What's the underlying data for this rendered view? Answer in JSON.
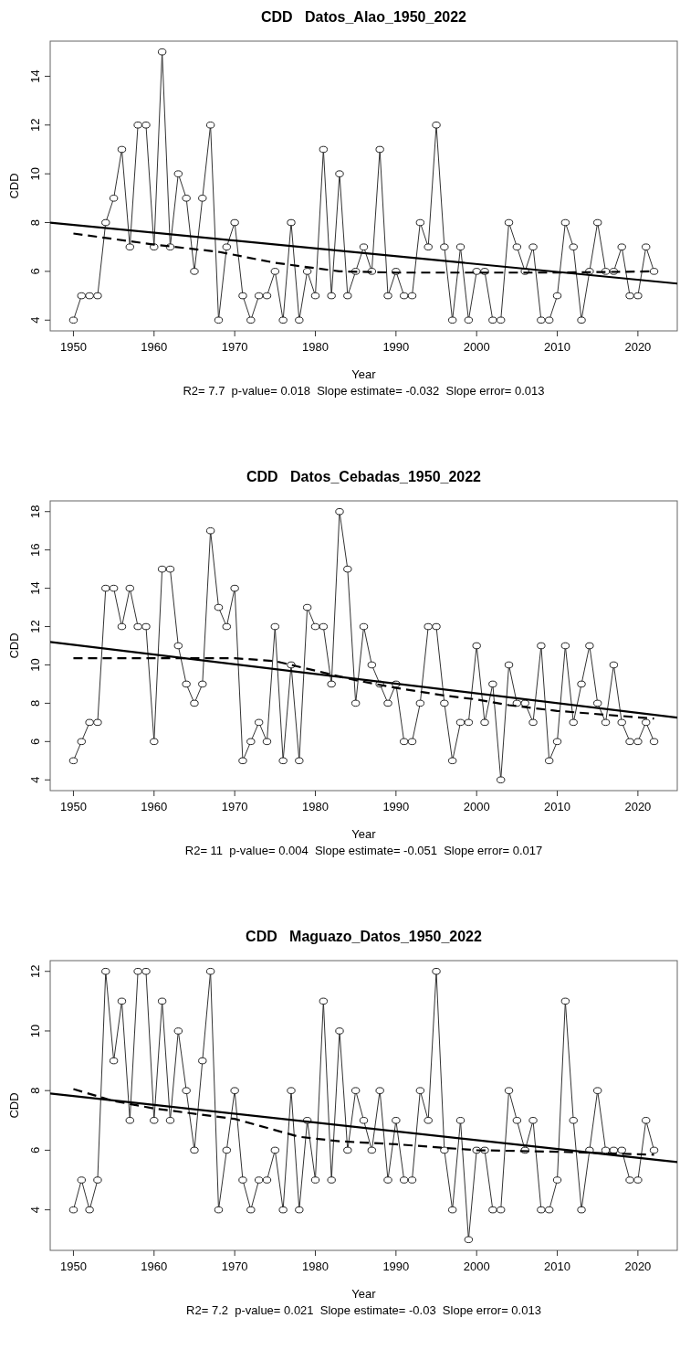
{
  "chart_data": [
    {
      "type": "line",
      "title": "CDD   Datos_Alao_1950_2022",
      "xlabel": "Year",
      "ylabel": "CDD",
      "annotations": [
        "R2= 7.7  p-value= 0.018  Slope estimate= -0.032  Slope error= 0.013"
      ],
      "x": [
        1950,
        1951,
        1952,
        1953,
        1954,
        1955,
        1956,
        1957,
        1958,
        1959,
        1960,
        1961,
        1962,
        1963,
        1964,
        1965,
        1966,
        1967,
        1968,
        1969,
        1970,
        1971,
        1972,
        1973,
        1974,
        1975,
        1976,
        1977,
        1978,
        1979,
        1980,
        1981,
        1982,
        1983,
        1984,
        1985,
        1986,
        1987,
        1988,
        1989,
        1990,
        1991,
        1992,
        1993,
        1994,
        1995,
        1996,
        1997,
        1998,
        1999,
        2000,
        2001,
        2002,
        2003,
        2004,
        2005,
        2006,
        2007,
        2008,
        2009,
        2010,
        2011,
        2012,
        2013,
        2014,
        2015,
        2016,
        2017,
        2018,
        2019,
        2020,
        2021,
        2022
      ],
      "series": [
        {
          "color": "#333333",
          "marker": "circle",
          "line_style": "solid",
          "values": [
            4,
            5,
            5,
            5,
            8,
            9,
            11,
            7,
            12,
            12,
            7,
            15,
            7,
            10,
            9,
            6,
            9,
            12,
            4,
            7,
            8,
            5,
            4,
            5,
            5,
            6,
            4,
            8,
            4,
            6,
            5,
            11,
            5,
            10,
            5,
            6,
            7,
            6,
            11,
            5,
            6,
            5,
            5,
            8,
            7,
            12,
            7,
            4,
            7,
            4,
            6,
            6,
            4,
            4,
            8,
            7,
            6,
            7,
            4,
            4,
            5,
            8,
            7,
            4,
            6,
            8,
            6,
            6,
            7,
            5,
            5,
            7,
            6
          ]
        },
        {
          "type": "line",
          "color": "#000000",
          "marker": "none",
          "line_style": "solid",
          "x": [
            1947.12,
            2024.88
          ],
          "values": [
            8.0,
            5.5
          ]
        },
        {
          "type": "line",
          "color": "#000000",
          "marker": "none",
          "line_style": "dashed",
          "x": [
            1950,
            1960,
            1968,
            1975,
            1983,
            1990,
            2000,
            2010,
            2022
          ],
          "values": [
            7.55,
            7.1,
            6.8,
            6.35,
            6.0,
            5.95,
            5.95,
            5.95,
            6.0
          ]
        }
      ],
      "xlim": [
        1947.12,
        2024.88
      ],
      "xticks": [
        1950,
        1960,
        1970,
        1980,
        1990,
        2000,
        2010,
        2020
      ],
      "ylim": [
        3.56,
        15.44
      ],
      "yticks": [
        4,
        6,
        8,
        10,
        12,
        14
      ]
    },
    {
      "type": "line",
      "title": "CDD   Datos_Cebadas_1950_2022",
      "xlabel": "Year",
      "ylabel": "CDD",
      "annotations": [
        "R2= 11  p-value= 0.004  Slope estimate= -0.051  Slope error= 0.017"
      ],
      "x": [
        1950,
        1951,
        1952,
        1953,
        1954,
        1955,
        1956,
        1957,
        1958,
        1959,
        1960,
        1961,
        1962,
        1963,
        1964,
        1965,
        1966,
        1967,
        1968,
        1969,
        1970,
        1971,
        1972,
        1973,
        1974,
        1975,
        1976,
        1977,
        1978,
        1979,
        1980,
        1981,
        1982,
        1983,
        1984,
        1985,
        1986,
        1987,
        1988,
        1989,
        1990,
        1991,
        1992,
        1993,
        1994,
        1995,
        1996,
        1997,
        1998,
        1999,
        2000,
        2001,
        2002,
        2003,
        2004,
        2005,
        2006,
        2007,
        2008,
        2009,
        2010,
        2011,
        2012,
        2013,
        2014,
        2015,
        2016,
        2017,
        2018,
        2019,
        2020,
        2021,
        2022
      ],
      "series": [
        {
          "color": "#333333",
          "marker": "circle",
          "line_style": "solid",
          "values": [
            5,
            6,
            7,
            7,
            14,
            14,
            12,
            14,
            12,
            12,
            6,
            15,
            15,
            11,
            9,
            8,
            9,
            17,
            13,
            12,
            14,
            5,
            6,
            7,
            6,
            12,
            5,
            10,
            5,
            13,
            12,
            12,
            9,
            18,
            15,
            8,
            12,
            10,
            9,
            8,
            9,
            6,
            6,
            8,
            12,
            12,
            8,
            5,
            7,
            7,
            11,
            7,
            9,
            4,
            10,
            8,
            8,
            7,
            11,
            5,
            6,
            11,
            7,
            9,
            11,
            8,
            7,
            10,
            7,
            6,
            6,
            7,
            6
          ]
        },
        {
          "type": "line",
          "color": "#000000",
          "marker": "none",
          "line_style": "solid",
          "x": [
            1947.12,
            2024.88
          ],
          "values": [
            11.2,
            7.25
          ]
        },
        {
          "type": "line",
          "color": "#000000",
          "marker": "none",
          "line_style": "dashed",
          "x": [
            1950,
            1960,
            1970,
            1975,
            1980,
            1985,
            1990,
            1996,
            2000,
            2004,
            2010,
            2016,
            2022
          ],
          "values": [
            10.35,
            10.35,
            10.35,
            10.2,
            9.7,
            9.2,
            8.8,
            8.4,
            8.2,
            7.9,
            7.6,
            7.4,
            7.2
          ]
        }
      ],
      "xlim": [
        1947.12,
        2024.88
      ],
      "xticks": [
        1950,
        1960,
        1970,
        1980,
        1990,
        2000,
        2010,
        2020
      ],
      "ylim": [
        3.44,
        18.56
      ],
      "yticks": [
        4,
        6,
        8,
        10,
        12,
        14,
        16,
        18
      ]
    },
    {
      "type": "line",
      "title": "CDD   Maguazo_Datos_1950_2022",
      "xlabel": "Year",
      "ylabel": "CDD",
      "annotations": [
        "R2= 7.2  p-value= 0.021  Slope estimate= -0.03  Slope error= 0.013"
      ],
      "x": [
        1950,
        1951,
        1952,
        1953,
        1954,
        1955,
        1956,
        1957,
        1958,
        1959,
        1960,
        1961,
        1962,
        1963,
        1964,
        1965,
        1966,
        1967,
        1968,
        1969,
        1970,
        1971,
        1972,
        1973,
        1974,
        1975,
        1976,
        1977,
        1978,
        1979,
        1980,
        1981,
        1982,
        1983,
        1984,
        1985,
        1986,
        1987,
        1988,
        1989,
        1990,
        1991,
        1992,
        1993,
        1994,
        1995,
        1996,
        1997,
        1998,
        1999,
        2000,
        2001,
        2002,
        2003,
        2004,
        2005,
        2006,
        2007,
        2008,
        2009,
        2010,
        2011,
        2012,
        2013,
        2014,
        2015,
        2016,
        2017,
        2018,
        2019,
        2020,
        2021,
        2022
      ],
      "series": [
        {
          "color": "#333333",
          "marker": "circle",
          "line_style": "solid",
          "values": [
            4,
            5,
            4,
            5,
            12,
            9,
            11,
            7,
            12,
            12,
            7,
            11,
            7,
            10,
            8,
            6,
            9,
            12,
            4,
            6,
            8,
            5,
            4,
            5,
            5,
            6,
            4,
            8,
            4,
            7,
            5,
            11,
            5,
            10,
            6,
            8,
            7,
            6,
            8,
            5,
            7,
            5,
            5,
            8,
            7,
            12,
            6,
            4,
            7,
            3,
            6,
            6,
            4,
            4,
            8,
            7,
            6,
            7,
            4,
            4,
            5,
            11,
            7,
            4,
            6,
            8,
            6,
            6,
            6,
            5,
            5,
            7,
            6
          ]
        },
        {
          "type": "line",
          "color": "#000000",
          "marker": "none",
          "line_style": "solid",
          "x": [
            1947.12,
            2024.88
          ],
          "values": [
            7.9,
            5.6
          ]
        },
        {
          "type": "line",
          "color": "#000000",
          "marker": "none",
          "line_style": "dashed",
          "x": [
            1950,
            1955,
            1960,
            1970,
            1978,
            1983,
            1990,
            2000,
            2010,
            2022
          ],
          "values": [
            8.05,
            7.65,
            7.4,
            7.05,
            6.45,
            6.3,
            6.2,
            6.0,
            5.95,
            5.85
          ]
        }
      ],
      "xlim": [
        1947.12,
        2024.88
      ],
      "xticks": [
        1950,
        1960,
        1970,
        1980,
        1990,
        2000,
        2010,
        2020
      ],
      "ylim": [
        2.64,
        12.36
      ],
      "yticks": [
        4,
        6,
        8,
        10,
        12
      ]
    }
  ]
}
